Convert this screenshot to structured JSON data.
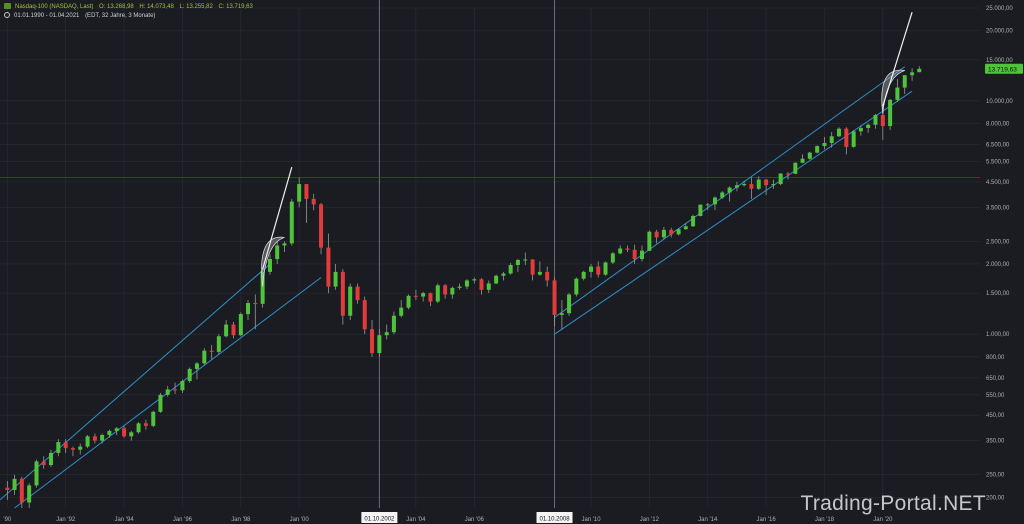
{
  "header": {
    "instrument": "Nasdaq-100 (NASDAQ, Last)",
    "open": "O: 13.268,98",
    "high": "H: 14.073,48",
    "low": "L: 13.255,82",
    "close": "C: 13.719,63",
    "range": "01.01.1990 - 01.04.2021",
    "meta": "(EDT, 32 Jahre, 3 Monate)"
  },
  "watermark": "Trading-Portal.NET",
  "colors": {
    "background": "#1a1c22",
    "up": "#4fc33a",
    "down": "#e23b3b",
    "channel": "#2f8fc7",
    "resistance": "#8a2b2b",
    "last_price_badge": "#4fc33a",
    "grid": "#2a2d35"
  },
  "chart_data": {
    "type": "candlestick",
    "y_scale": "log",
    "ylim": [
      180,
      25000
    ],
    "xlim": [
      "1989-10-01",
      "2023-05-01"
    ],
    "y_ticks": [
      {
        "v": 25000,
        "label": "25.000,00"
      },
      {
        "v": 20000,
        "label": "20.000,00"
      },
      {
        "v": 15000,
        "label": "15.000,00"
      },
      {
        "v": 10000,
        "label": "10.000,00"
      },
      {
        "v": 8000,
        "label": "8.000,00"
      },
      {
        "v": 6500,
        "label": "6.500,00"
      },
      {
        "v": 5500,
        "label": "5.500,00"
      },
      {
        "v": 4500,
        "label": "4.500,00"
      },
      {
        "v": 3500,
        "label": "3.500,00"
      },
      {
        "v": 2500,
        "label": "2.500,00"
      },
      {
        "v": 2000,
        "label": "2.000,00"
      },
      {
        "v": 1500,
        "label": "1.500,00"
      },
      {
        "v": 1000,
        "label": "1.000,00"
      },
      {
        "v": 800,
        "label": "800,00"
      },
      {
        "v": 650,
        "label": "650,00"
      },
      {
        "v": 550,
        "label": "550,00"
      },
      {
        "v": 450,
        "label": "450,00"
      },
      {
        "v": 350,
        "label": "350,00"
      },
      {
        "v": 250,
        "label": "250,00"
      },
      {
        "v": 200,
        "label": "200,00"
      }
    ],
    "x_ticks": [
      {
        "d": "1990-01-01",
        "label": "'90"
      },
      {
        "d": "1992-01-01",
        "label": "Jan '92"
      },
      {
        "d": "1994-01-01",
        "label": "Jan '94"
      },
      {
        "d": "1996-01-01",
        "label": "Jan '96"
      },
      {
        "d": "1998-01-01",
        "label": "Jan '98"
      },
      {
        "d": "2000-01-01",
        "label": "Jan '00"
      },
      {
        "d": "2004-01-01",
        "label": "Jan '04"
      },
      {
        "d": "2006-01-01",
        "label": "Jan '06"
      },
      {
        "d": "2010-01-01",
        "label": "Jan '10"
      },
      {
        "d": "2012-01-01",
        "label": "Jan '12"
      },
      {
        "d": "2014-01-01",
        "label": "Jan '14"
      },
      {
        "d": "2016-01-01",
        "label": "Jan '16"
      },
      {
        "d": "2018-01-01",
        "label": "Jan '18"
      },
      {
        "d": "2020-01-01",
        "label": "Jan '20"
      }
    ],
    "vertical_markers": [
      {
        "d": "2002-10-01",
        "label": "01.10.2002"
      },
      {
        "d": "2008-10-01",
        "label": "01.10.2008"
      }
    ],
    "horizontal_line": 4700,
    "last_price": {
      "v": 13719.63,
      "label": "13.719,63"
    },
    "channels": [
      {
        "upper": [
          [
            "1989-10-01",
            195
          ],
          [
            "1999-01-01",
            2000
          ]
        ],
        "lower": [
          [
            "1990-04-01",
            180
          ],
          [
            "2000-10-01",
            1750
          ]
        ]
      },
      {
        "upper": [
          [
            "2008-10-01",
            1180
          ],
          [
            "2020-10-01",
            14000
          ]
        ],
        "lower": [
          [
            "2008-10-01",
            1000
          ],
          [
            "2021-01-01",
            11000
          ]
        ]
      }
    ],
    "trend_lines": [
      [
        [
          "1998-10-01",
          1900
        ],
        [
          "1999-10-01",
          5200
        ]
      ],
      [
        [
          "2020-01-01",
          9500
        ],
        [
          "2021-01-01",
          24000
        ]
      ]
    ],
    "arcs": [
      {
        "from": [
          "1998-10-01",
          1600
        ],
        "to": [
          "1999-07-01",
          2600
        ]
      },
      {
        "from": [
          "2020-01-01",
          8800
        ],
        "to": [
          "2020-10-01",
          13500
        ]
      }
    ],
    "candles": [
      {
        "d": "1990-01-01",
        "o": 220,
        "h": 235,
        "l": 195,
        "c": 215
      },
      {
        "d": "1990-04-01",
        "o": 215,
        "h": 250,
        "l": 205,
        "c": 240
      },
      {
        "d": "1990-07-01",
        "o": 240,
        "h": 245,
        "l": 180,
        "c": 190
      },
      {
        "d": "1990-10-01",
        "o": 190,
        "h": 230,
        "l": 180,
        "c": 225
      },
      {
        "d": "1991-01-01",
        "o": 225,
        "h": 290,
        "l": 220,
        "c": 285
      },
      {
        "d": "1991-04-01",
        "o": 285,
        "h": 300,
        "l": 265,
        "c": 275
      },
      {
        "d": "1991-07-01",
        "o": 275,
        "h": 320,
        "l": 270,
        "c": 310
      },
      {
        "d": "1991-10-01",
        "o": 310,
        "h": 355,
        "l": 300,
        "c": 345
      },
      {
        "d": "1992-01-01",
        "o": 345,
        "h": 355,
        "l": 310,
        "c": 325
      },
      {
        "d": "1992-04-01",
        "o": 325,
        "h": 330,
        "l": 300,
        "c": 320
      },
      {
        "d": "1992-07-01",
        "o": 320,
        "h": 340,
        "l": 305,
        "c": 330
      },
      {
        "d": "1992-10-01",
        "o": 330,
        "h": 370,
        "l": 325,
        "c": 365
      },
      {
        "d": "1993-01-01",
        "o": 365,
        "h": 375,
        "l": 340,
        "c": 350
      },
      {
        "d": "1993-04-01",
        "o": 350,
        "h": 375,
        "l": 340,
        "c": 370
      },
      {
        "d": "1993-07-01",
        "o": 370,
        "h": 390,
        "l": 360,
        "c": 385
      },
      {
        "d": "1993-10-01",
        "o": 385,
        "h": 400,
        "l": 370,
        "c": 395
      },
      {
        "d": "1994-01-01",
        "o": 395,
        "h": 405,
        "l": 360,
        "c": 365
      },
      {
        "d": "1994-04-01",
        "o": 365,
        "h": 385,
        "l": 350,
        "c": 380
      },
      {
        "d": "1994-07-01",
        "o": 380,
        "h": 420,
        "l": 375,
        "c": 415
      },
      {
        "d": "1994-10-01",
        "o": 415,
        "h": 430,
        "l": 390,
        "c": 405
      },
      {
        "d": "1995-01-01",
        "o": 405,
        "h": 470,
        "l": 400,
        "c": 465
      },
      {
        "d": "1995-04-01",
        "o": 465,
        "h": 560,
        "l": 460,
        "c": 550
      },
      {
        "d": "1995-07-01",
        "o": 550,
        "h": 600,
        "l": 540,
        "c": 580
      },
      {
        "d": "1995-10-01",
        "o": 580,
        "h": 620,
        "l": 555,
        "c": 575
      },
      {
        "d": "1996-01-01",
        "o": 575,
        "h": 640,
        "l": 560,
        "c": 630
      },
      {
        "d": "1996-04-01",
        "o": 630,
        "h": 720,
        "l": 620,
        "c": 710
      },
      {
        "d": "1996-07-01",
        "o": 710,
        "h": 760,
        "l": 640,
        "c": 750
      },
      {
        "d": "1996-10-01",
        "o": 750,
        "h": 870,
        "l": 740,
        "c": 850
      },
      {
        "d": "1997-01-01",
        "o": 850,
        "h": 900,
        "l": 780,
        "c": 840
      },
      {
        "d": "1997-04-01",
        "o": 840,
        "h": 1000,
        "l": 820,
        "c": 980
      },
      {
        "d": "1997-07-01",
        "o": 980,
        "h": 1150,
        "l": 970,
        "c": 1100
      },
      {
        "d": "1997-10-01",
        "o": 1100,
        "h": 1130,
        "l": 960,
        "c": 990
      },
      {
        "d": "1998-01-01",
        "o": 990,
        "h": 1240,
        "l": 980,
        "c": 1220
      },
      {
        "d": "1998-04-01",
        "o": 1220,
        "h": 1400,
        "l": 1150,
        "c": 1360
      },
      {
        "d": "1998-07-01",
        "o": 1360,
        "h": 1480,
        "l": 1050,
        "c": 1350
      },
      {
        "d": "1998-10-01",
        "o": 1350,
        "h": 1900,
        "l": 1300,
        "c": 1850
      },
      {
        "d": "1999-01-01",
        "o": 1850,
        "h": 2200,
        "l": 1800,
        "c": 2100
      },
      {
        "d": "1999-04-01",
        "o": 2100,
        "h": 2500,
        "l": 2000,
        "c": 2400
      },
      {
        "d": "1999-07-01",
        "o": 2400,
        "h": 2500,
        "l": 2250,
        "c": 2450
      },
      {
        "d": "1999-10-01",
        "o": 2450,
        "h": 3800,
        "l": 2400,
        "c": 3700
      },
      {
        "d": "2000-01-01",
        "o": 3700,
        "h": 4700,
        "l": 3500,
        "c": 4400
      },
      {
        "d": "2000-04-01",
        "o": 4400,
        "h": 4400,
        "l": 3000,
        "c": 3800
      },
      {
        "d": "2000-07-01",
        "o": 3800,
        "h": 4000,
        "l": 3400,
        "c": 3600
      },
      {
        "d": "2000-10-01",
        "o": 3600,
        "h": 3650,
        "l": 2200,
        "c": 2350
      },
      {
        "d": "2001-01-01",
        "o": 2350,
        "h": 2700,
        "l": 1500,
        "c": 1600
      },
      {
        "d": "2001-04-01",
        "o": 1600,
        "h": 2000,
        "l": 1550,
        "c": 1850
      },
      {
        "d": "2001-07-01",
        "o": 1850,
        "h": 1900,
        "l": 1100,
        "c": 1200
      },
      {
        "d": "2001-10-01",
        "o": 1200,
        "h": 1650,
        "l": 1150,
        "c": 1600
      },
      {
        "d": "2002-01-01",
        "o": 1600,
        "h": 1650,
        "l": 1350,
        "c": 1400
      },
      {
        "d": "2002-04-01",
        "o": 1400,
        "h": 1450,
        "l": 1000,
        "c": 1050
      },
      {
        "d": "2002-07-01",
        "o": 1050,
        "h": 1150,
        "l": 800,
        "c": 830
      },
      {
        "d": "2002-10-01",
        "o": 830,
        "h": 1050,
        "l": 800,
        "c": 990
      },
      {
        "d": "2003-01-01",
        "o": 990,
        "h": 1100,
        "l": 950,
        "c": 1020
      },
      {
        "d": "2003-04-01",
        "o": 1020,
        "h": 1250,
        "l": 1000,
        "c": 1200
      },
      {
        "d": "2003-07-01",
        "o": 1200,
        "h": 1400,
        "l": 1180,
        "c": 1300
      },
      {
        "d": "2003-10-01",
        "o": 1300,
        "h": 1480,
        "l": 1280,
        "c": 1460
      },
      {
        "d": "2004-01-01",
        "o": 1460,
        "h": 1550,
        "l": 1400,
        "c": 1450
      },
      {
        "d": "2004-04-01",
        "o": 1450,
        "h": 1520,
        "l": 1380,
        "c": 1500
      },
      {
        "d": "2004-07-01",
        "o": 1500,
        "h": 1510,
        "l": 1320,
        "c": 1380
      },
      {
        "d": "2004-10-01",
        "o": 1380,
        "h": 1650,
        "l": 1360,
        "c": 1620
      },
      {
        "d": "2005-01-01",
        "o": 1620,
        "h": 1640,
        "l": 1420,
        "c": 1480
      },
      {
        "d": "2005-04-01",
        "o": 1480,
        "h": 1600,
        "l": 1420,
        "c": 1580
      },
      {
        "d": "2005-07-01",
        "o": 1580,
        "h": 1650,
        "l": 1550,
        "c": 1600
      },
      {
        "d": "2005-10-01",
        "o": 1600,
        "h": 1720,
        "l": 1560,
        "c": 1700
      },
      {
        "d": "2006-01-01",
        "o": 1700,
        "h": 1750,
        "l": 1650,
        "c": 1720
      },
      {
        "d": "2006-04-01",
        "o": 1720,
        "h": 1740,
        "l": 1480,
        "c": 1550
      },
      {
        "d": "2006-07-01",
        "o": 1550,
        "h": 1700,
        "l": 1500,
        "c": 1650
      },
      {
        "d": "2006-10-01",
        "o": 1650,
        "h": 1800,
        "l": 1640,
        "c": 1780
      },
      {
        "d": "2007-01-01",
        "o": 1780,
        "h": 1850,
        "l": 1700,
        "c": 1820
      },
      {
        "d": "2007-04-01",
        "o": 1820,
        "h": 2020,
        "l": 1800,
        "c": 1980
      },
      {
        "d": "2007-07-01",
        "o": 1980,
        "h": 2100,
        "l": 1850,
        "c": 2080
      },
      {
        "d": "2007-10-01",
        "o": 2080,
        "h": 2240,
        "l": 1980,
        "c": 2090
      },
      {
        "d": "2008-01-01",
        "o": 2090,
        "h": 2100,
        "l": 1700,
        "c": 1800
      },
      {
        "d": "2008-04-01",
        "o": 1800,
        "h": 2050,
        "l": 1780,
        "c": 1850
      },
      {
        "d": "2008-07-01",
        "o": 1850,
        "h": 1950,
        "l": 1600,
        "c": 1700
      },
      {
        "d": "2008-10-01",
        "o": 1700,
        "h": 1750,
        "l": 1080,
        "c": 1210
      },
      {
        "d": "2009-01-01",
        "o": 1210,
        "h": 1400,
        "l": 1050,
        "c": 1230
      },
      {
        "d": "2009-04-01",
        "o": 1230,
        "h": 1500,
        "l": 1200,
        "c": 1480
      },
      {
        "d": "2009-07-01",
        "o": 1480,
        "h": 1750,
        "l": 1450,
        "c": 1730
      },
      {
        "d": "2009-10-01",
        "o": 1730,
        "h": 1870,
        "l": 1700,
        "c": 1850
      },
      {
        "d": "2010-01-01",
        "o": 1850,
        "h": 2000,
        "l": 1750,
        "c": 1950
      },
      {
        "d": "2010-04-01",
        "o": 1950,
        "h": 2050,
        "l": 1750,
        "c": 1800
      },
      {
        "d": "2010-07-01",
        "o": 1800,
        "h": 2050,
        "l": 1780,
        "c": 2030
      },
      {
        "d": "2010-10-01",
        "o": 2030,
        "h": 2250,
        "l": 2000,
        "c": 2220
      },
      {
        "d": "2011-01-01",
        "o": 2220,
        "h": 2400,
        "l": 2200,
        "c": 2330
      },
      {
        "d": "2011-04-01",
        "o": 2330,
        "h": 2400,
        "l": 2250,
        "c": 2300
      },
      {
        "d": "2011-07-01",
        "o": 2300,
        "h": 2420,
        "l": 2000,
        "c": 2100
      },
      {
        "d": "2011-10-01",
        "o": 2100,
        "h": 2400,
        "l": 2050,
        "c": 2280
      },
      {
        "d": "2012-01-01",
        "o": 2280,
        "h": 2780,
        "l": 2270,
        "c": 2750
      },
      {
        "d": "2012-04-01",
        "o": 2750,
        "h": 2800,
        "l": 2450,
        "c": 2600
      },
      {
        "d": "2012-07-01",
        "o": 2600,
        "h": 2880,
        "l": 2550,
        "c": 2800
      },
      {
        "d": "2012-10-01",
        "o": 2800,
        "h": 2860,
        "l": 2600,
        "c": 2680
      },
      {
        "d": "2013-01-01",
        "o": 2680,
        "h": 2850,
        "l": 2650,
        "c": 2820
      },
      {
        "d": "2013-04-01",
        "o": 2820,
        "h": 3000,
        "l": 2800,
        "c": 2900
      },
      {
        "d": "2013-07-01",
        "o": 2900,
        "h": 3250,
        "l": 2880,
        "c": 3210
      },
      {
        "d": "2013-10-01",
        "o": 3210,
        "h": 3600,
        "l": 3200,
        "c": 3590
      },
      {
        "d": "2014-01-01",
        "o": 3590,
        "h": 3650,
        "l": 3400,
        "c": 3600
      },
      {
        "d": "2014-04-01",
        "o": 3600,
        "h": 3900,
        "l": 3400,
        "c": 3850
      },
      {
        "d": "2014-07-01",
        "o": 3850,
        "h": 4100,
        "l": 3800,
        "c": 4050
      },
      {
        "d": "2014-10-01",
        "o": 4050,
        "h": 4300,
        "l": 3700,
        "c": 4250
      },
      {
        "d": "2015-01-01",
        "o": 4250,
        "h": 4500,
        "l": 4100,
        "c": 4350
      },
      {
        "d": "2015-04-01",
        "o": 4350,
        "h": 4550,
        "l": 4300,
        "c": 4400
      },
      {
        "d": "2015-07-01",
        "o": 4400,
        "h": 4700,
        "l": 3800,
        "c": 4200
      },
      {
        "d": "2015-10-01",
        "o": 4200,
        "h": 4750,
        "l": 4150,
        "c": 4600
      },
      {
        "d": "2016-01-01",
        "o": 4600,
        "h": 4620,
        "l": 3950,
        "c": 4350
      },
      {
        "d": "2016-04-01",
        "o": 4350,
        "h": 4600,
        "l": 4200,
        "c": 4400
      },
      {
        "d": "2016-07-01",
        "o": 4400,
        "h": 4900,
        "l": 4350,
        "c": 4880
      },
      {
        "d": "2016-10-01",
        "o": 4880,
        "h": 4950,
        "l": 4600,
        "c": 4870
      },
      {
        "d": "2017-01-01",
        "o": 4870,
        "h": 5450,
        "l": 4850,
        "c": 5430
      },
      {
        "d": "2017-04-01",
        "o": 5430,
        "h": 5900,
        "l": 5400,
        "c": 5650
      },
      {
        "d": "2017-07-01",
        "o": 5650,
        "h": 6050,
        "l": 5600,
        "c": 6000
      },
      {
        "d": "2017-10-01",
        "o": 6000,
        "h": 6450,
        "l": 5950,
        "c": 6400
      },
      {
        "d": "2018-01-01",
        "o": 6400,
        "h": 7000,
        "l": 6200,
        "c": 6600
      },
      {
        "d": "2018-04-01",
        "o": 6600,
        "h": 7350,
        "l": 6300,
        "c": 7050
      },
      {
        "d": "2018-07-01",
        "o": 7050,
        "h": 7700,
        "l": 7000,
        "c": 7600
      },
      {
        "d": "2018-10-01",
        "o": 7600,
        "h": 7700,
        "l": 5900,
        "c": 6350
      },
      {
        "d": "2019-01-01",
        "o": 6350,
        "h": 7500,
        "l": 6300,
        "c": 7400
      },
      {
        "d": "2019-04-01",
        "o": 7400,
        "h": 7850,
        "l": 7100,
        "c": 7650
      },
      {
        "d": "2019-07-01",
        "o": 7650,
        "h": 8000,
        "l": 7300,
        "c": 7900
      },
      {
        "d": "2019-10-01",
        "o": 7900,
        "h": 8800,
        "l": 7600,
        "c": 8700
      },
      {
        "d": "2020-01-01",
        "o": 8700,
        "h": 9700,
        "l": 6800,
        "c": 7800
      },
      {
        "d": "2020-04-01",
        "o": 7800,
        "h": 10200,
        "l": 7500,
        "c": 10100
      },
      {
        "d": "2020-07-01",
        "o": 10100,
        "h": 12400,
        "l": 9900,
        "c": 11400
      },
      {
        "d": "2020-10-01",
        "o": 11400,
        "h": 12900,
        "l": 10700,
        "c": 12880
      },
      {
        "d": "2021-01-01",
        "o": 12880,
        "h": 13800,
        "l": 12200,
        "c": 13250
      },
      {
        "d": "2021-04-01",
        "o": 13270,
        "h": 14070,
        "l": 13260,
        "c": 13720
      }
    ]
  }
}
